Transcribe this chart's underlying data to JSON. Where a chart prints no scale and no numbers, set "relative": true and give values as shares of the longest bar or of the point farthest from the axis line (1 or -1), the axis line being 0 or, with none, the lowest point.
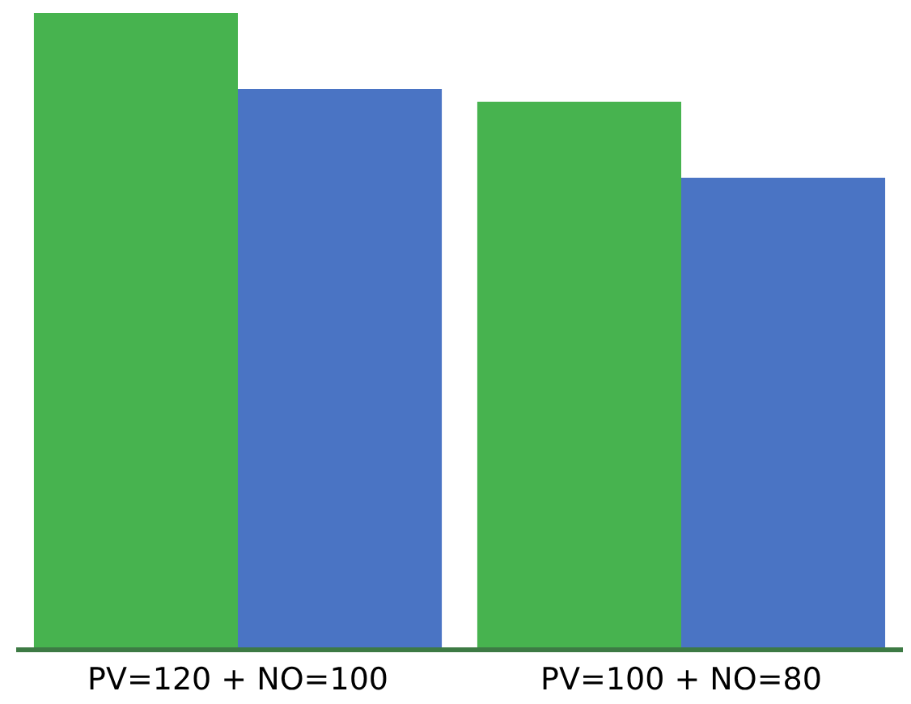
{
  "chart_data": {
    "type": "bar",
    "relative": true,
    "categories": [
      "PV=120 + NO=100",
      "PV=100 + NO=80"
    ],
    "series": [
      {
        "color": "#47b34f",
        "values": [
          1,
          0.86
        ]
      },
      {
        "color": "#4a74c4",
        "values": [
          0.88,
          0.74
        ]
      }
    ]
  }
}
